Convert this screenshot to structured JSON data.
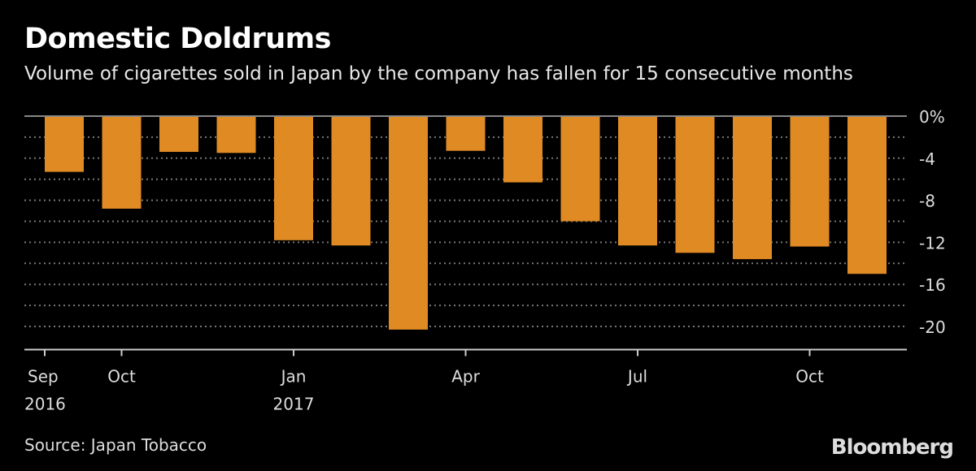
{
  "header": {
    "title": "Domestic Doldrums",
    "subtitle": "Volume of cigarettes sold in Japan by the company has fallen for 15 consecutive months"
  },
  "footer": {
    "source": "Source: Japan Tobacco",
    "logo": "Bloomberg"
  },
  "chart_data": {
    "type": "bar",
    "title": "Domestic Doldrums",
    "subtitle": "Volume of cigarettes sold in Japan by the company has fallen for 15 consecutive months",
    "categories": [
      "Sep 2016",
      "Oct 2016",
      "Nov 2016",
      "Dec 2016",
      "Jan 2017",
      "Feb 2017",
      "Mar 2017",
      "Apr 2017",
      "May 2017",
      "Jun 2017",
      "Jul 2017",
      "Aug 2017",
      "Sep 2017",
      "Oct 2017",
      "Nov 2017"
    ],
    "values": [
      -5.3,
      -8.8,
      -3.4,
      -3.5,
      -11.8,
      -12.3,
      -20.3,
      -3.3,
      -6.3,
      -10.0,
      -12.3,
      -13.0,
      -13.6,
      -12.4,
      -15.0
    ],
    "ylim": [
      -22,
      0
    ],
    "y_ticks": [
      "0%",
      "-4",
      "-8",
      "-12",
      "-16",
      "-20"
    ],
    "y_tick_values": [
      0,
      -4,
      -8,
      -12,
      -16,
      -20
    ],
    "x_ticks": [
      {
        "label": "Sep",
        "sub": "2016",
        "index": 0
      },
      {
        "label": "Oct",
        "sub": "",
        "index": 1
      },
      {
        "label": "Jan",
        "sub": "2017",
        "index": 4
      },
      {
        "label": "Apr",
        "sub": "",
        "index": 7
      },
      {
        "label": "Jul",
        "sub": "",
        "index": 10
      },
      {
        "label": "Oct",
        "sub": "",
        "index": 13
      }
    ],
    "grid": true,
    "y_axis_position": "right",
    "bar_color": "#e08a24",
    "background": "#000000"
  }
}
